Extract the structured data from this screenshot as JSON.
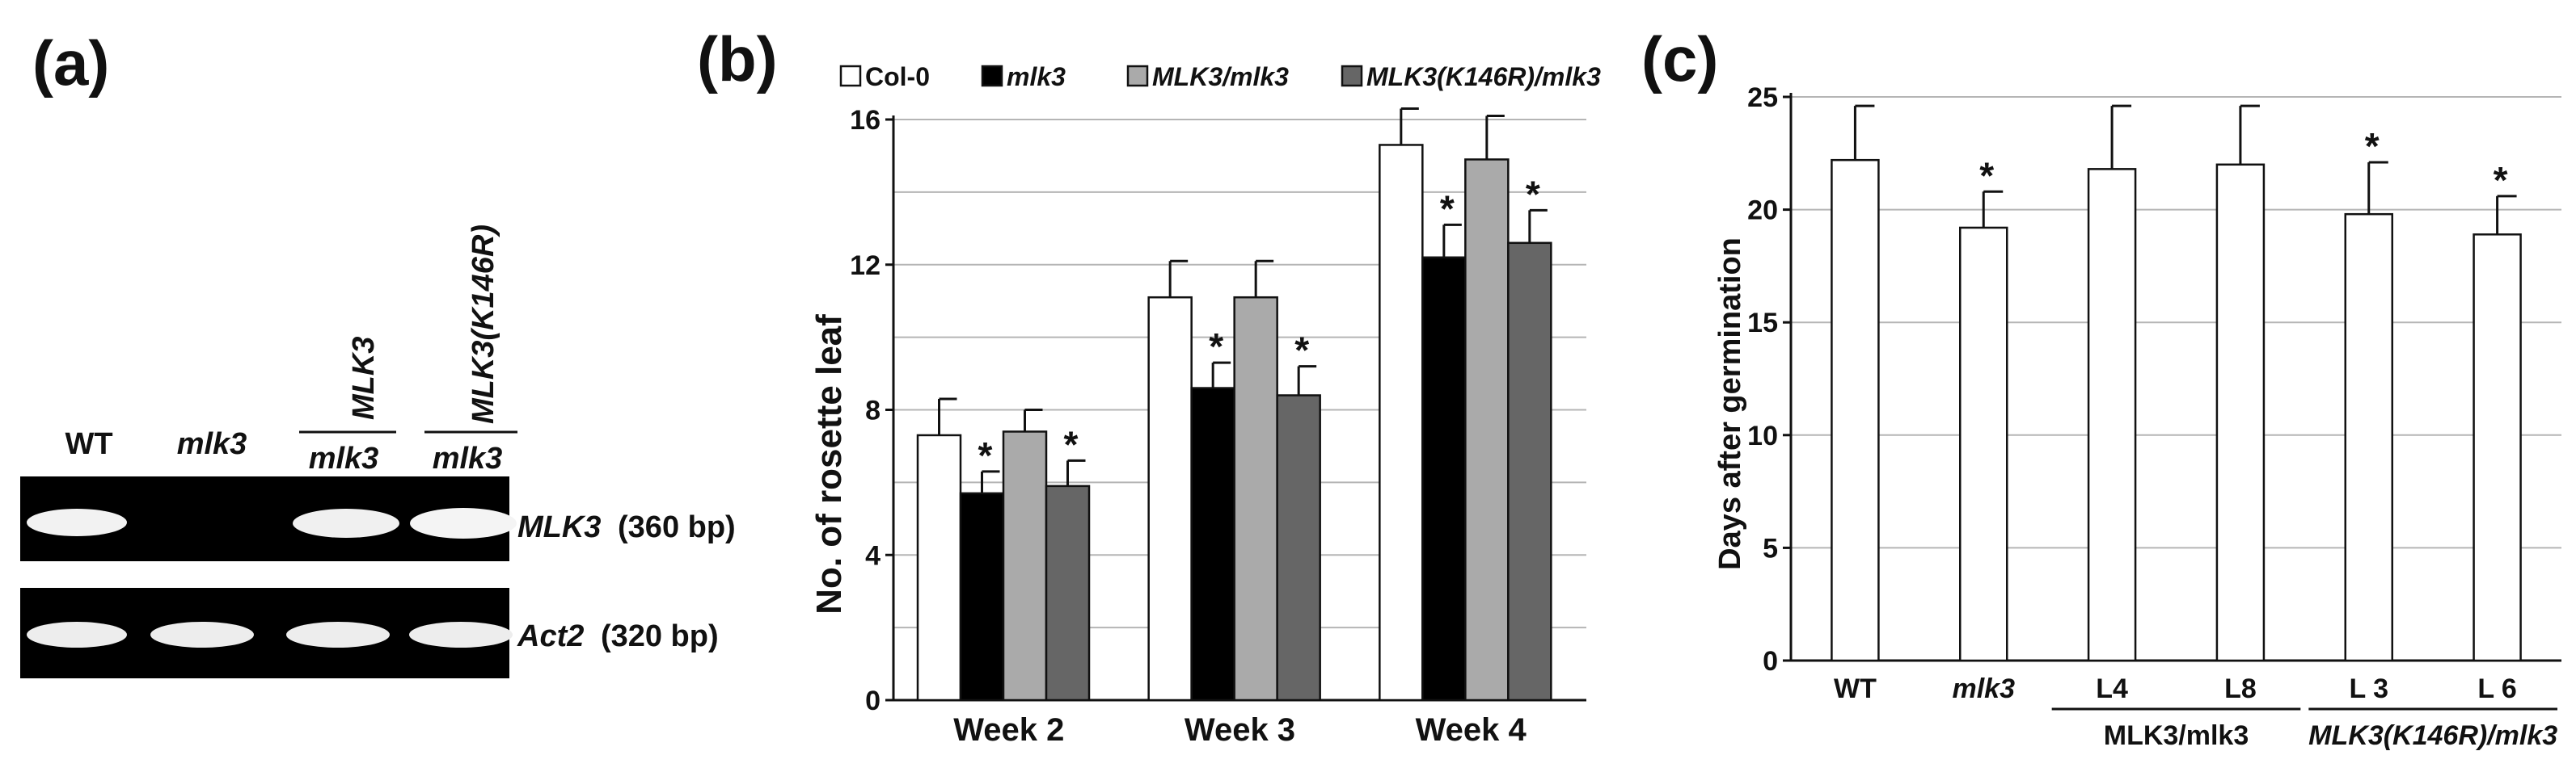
{
  "panels": {
    "a": {
      "letter": "(a)",
      "lanes": [
        {
          "top": "WT",
          "bottom": ""
        },
        {
          "top": "mlk3",
          "bottom": ""
        },
        {
          "top": "MLK3",
          "bottom": "mlk3"
        },
        {
          "top": "MLK3(K146R)",
          "bottom": "mlk3"
        }
      ],
      "gel_labels": [
        {
          "gene": "MLK3",
          "size": "(360 bp)"
        },
        {
          "gene": "Act2",
          "size": "(320 bp)"
        }
      ]
    },
    "b": {
      "letter": "(b)",
      "legend": [
        "Col-0",
        "mlk3",
        "MLK3/mlk3",
        "MLK3(K146R)/mlk3"
      ]
    },
    "c": {
      "letter": "(c)",
      "group_labels": [
        "MLK3/mlk3",
        "MLK3(K146R)/mlk3"
      ]
    }
  },
  "chart_data": [
    {
      "panel": "b",
      "type": "bar",
      "categories": [
        "Week 2",
        "Week 3",
        "Week 4"
      ],
      "series": [
        {
          "name": "Col-0",
          "color": "#ffffff",
          "values": [
            7.3,
            11.1,
            15.3
          ],
          "errors": [
            1.0,
            1.0,
            1.0
          ],
          "significant": [
            false,
            false,
            false
          ]
        },
        {
          "name": "mlk3",
          "color": "#000000",
          "values": [
            5.7,
            8.6,
            12.2
          ],
          "errors": [
            0.6,
            0.7,
            0.9
          ],
          "significant": [
            true,
            true,
            true
          ]
        },
        {
          "name": "MLK3/mlk3",
          "color": "#aaaaaa",
          "values": [
            7.4,
            11.1,
            14.9
          ],
          "errors": [
            0.6,
            1.0,
            1.2
          ],
          "significant": [
            false,
            false,
            false
          ]
        },
        {
          "name": "MLK3(K146R)/mlk3",
          "color": "#666666",
          "values": [
            5.9,
            8.4,
            12.6
          ],
          "errors": [
            0.7,
            0.8,
            0.9
          ],
          "significant": [
            true,
            true,
            true
          ]
        }
      ],
      "ylabel": "No. of rosette leaf",
      "xlabel": "",
      "ylim": [
        0,
        16
      ],
      "yticks": [
        0,
        4,
        8,
        12,
        16
      ],
      "significance_marker": "*"
    },
    {
      "panel": "c",
      "type": "bar",
      "categories": [
        "WT",
        "mlk3",
        "L4",
        "L8",
        "L 3",
        "L 6"
      ],
      "values": [
        22.2,
        19.2,
        21.8,
        22.0,
        19.8,
        18.9
      ],
      "errors": [
        2.4,
        1.6,
        2.8,
        2.6,
        2.3,
        1.7
      ],
      "significant": [
        false,
        true,
        false,
        false,
        true,
        true
      ],
      "color": "#ffffff",
      "ylabel": "Days after germination",
      "xlabel": "",
      "ylim": [
        0,
        25
      ],
      "yticks": [
        0,
        5,
        10,
        15,
        20,
        25
      ],
      "significance_marker": "*"
    }
  ]
}
